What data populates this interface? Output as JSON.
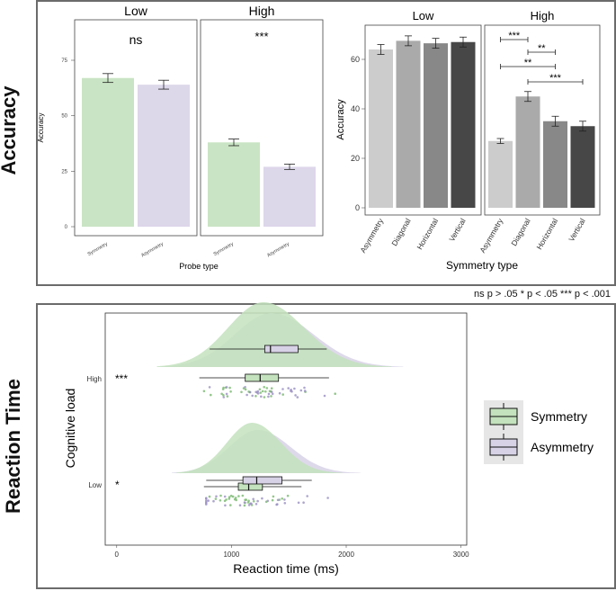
{
  "sections": {
    "accuracy_label": "Accuracy",
    "rt_label": "Reaction Time",
    "significance_note": "ns p > .05 * p < .05 *** p < .001"
  },
  "chart_data": [
    {
      "id": "acc_probe",
      "type": "bar",
      "facets": [
        "Low",
        "High"
      ],
      "categories": [
        "Symmetry",
        "Asymmetry"
      ],
      "values": {
        "Low": [
          67,
          64
        ],
        "High": [
          38,
          27
        ]
      },
      "errors": {
        "Low": [
          2,
          2
        ],
        "High": [
          1.5,
          1.2
        ]
      },
      "facet_significance": {
        "Low": "ns",
        "High": "***"
      },
      "colors": [
        "#c9e4c4",
        "#ddd7ea"
      ],
      "xlabel": "Probe type",
      "ylabel": "Accuracy",
      "ylim": [
        0,
        90
      ],
      "yticks": [
        0,
        25,
        50,
        75
      ]
    },
    {
      "id": "acc_symmetry",
      "type": "bar",
      "facets": [
        "Low",
        "High"
      ],
      "categories": [
        "Asymmetry",
        "Diagonal",
        "Horizontal",
        "Vertical"
      ],
      "values": {
        "Low": [
          64,
          67.5,
          66.5,
          67
        ],
        "High": [
          27,
          45,
          35,
          33
        ]
      },
      "errors": {
        "Low": [
          2,
          2,
          2,
          2
        ],
        "High": [
          1,
          2,
          2,
          2
        ]
      },
      "colors": [
        "#cccccc",
        "#aaaaaa",
        "#888888",
        "#474747"
      ],
      "comparisons": [
        {
          "facet": "High",
          "from": "Asymmetry",
          "to": "Diagonal",
          "label": "***"
        },
        {
          "facet": "High",
          "from": "Diagonal",
          "to": "Horizontal",
          "label": "**"
        },
        {
          "facet": "High",
          "from": "Asymmetry",
          "to": "Horizontal",
          "label": "**"
        },
        {
          "facet": "High",
          "from": "Diagonal",
          "to": "Vertical",
          "label": "***"
        }
      ],
      "xlabel": "Symmetry type",
      "ylabel": "Accuracy",
      "ylim": [
        -2,
        72
      ],
      "yticks": [
        0,
        20,
        40,
        60
      ]
    },
    {
      "id": "rt_raincloud",
      "type": "raincloud",
      "groups": [
        "High",
        "Low"
      ],
      "group_significance": {
        "High": "***",
        "Low": "*"
      },
      "series": [
        {
          "name": "Symmetry",
          "color": "#c3e2bd",
          "border": "#3c8a3c",
          "boxes": {
            "High": {
              "whisker_low": 720,
              "q1": 1120,
              "median": 1250,
              "q3": 1410,
              "whisker_high": 1850
            },
            "Low": {
              "whisker_low": 760,
              "q1": 1060,
              "median": 1150,
              "q3": 1270,
              "whisker_high": 1610
            }
          },
          "density_peak": {
            "High": 1280,
            "Low": 1180
          }
        },
        {
          "name": "Asymmetry",
          "color": "#d8d2e6",
          "border": "#6d5e93",
          "boxes": {
            "High": {
              "whisker_low": 810,
              "q1": 1290,
              "median": 1340,
              "q3": 1580,
              "whisker_high": 1830
            },
            "Low": {
              "whisker_low": 780,
              "q1": 1100,
              "median": 1220,
              "q3": 1440,
              "whisker_high": 1700
            }
          },
          "density_peak": {
            "High": 1350,
            "Low": 1230
          }
        }
      ],
      "legend": [
        "Symmetry",
        "Asymmetry"
      ],
      "xlabel": "Reaction time (ms)",
      "ylabel": "Cognitive load",
      "xlim": [
        -100,
        3050
      ],
      "xticks": [
        0,
        1000,
        2000,
        3000
      ]
    }
  ]
}
